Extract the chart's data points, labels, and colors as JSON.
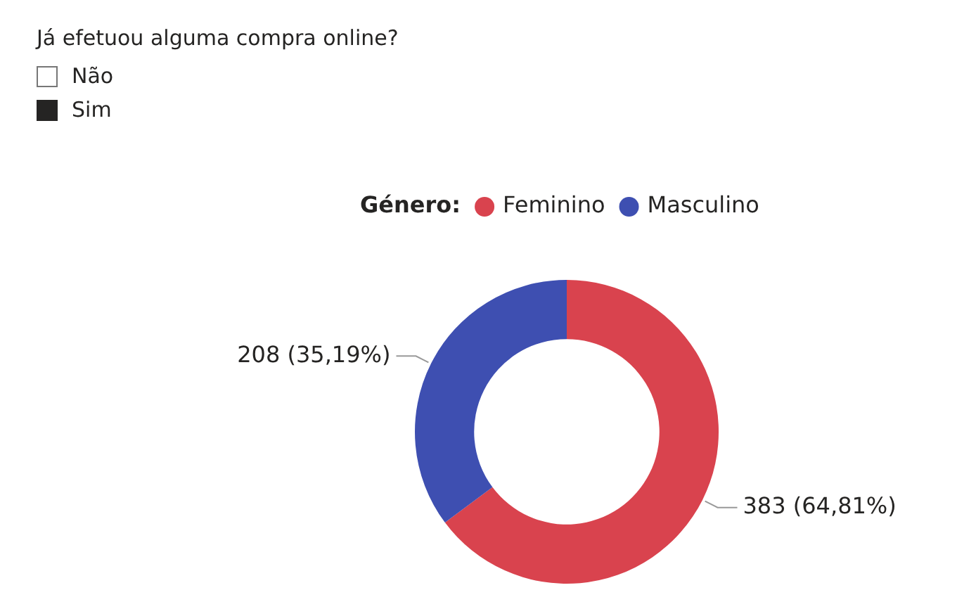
{
  "chart_data": {
    "type": "donut",
    "title": "Já efetuou alguma compra online?",
    "annotations": [
      "Não",
      "Sim"
    ],
    "legend_title": "Género:",
    "legend": "top",
    "categories": [
      "Feminino",
      "Masculino"
    ],
    "values": [
      383,
      208
    ],
    "colors": [
      "#d9434e",
      "#3e4fb1"
    ],
    "value_labels": [
      "383 (64,81%)",
      "208 (35,19%)"
    ]
  }
}
